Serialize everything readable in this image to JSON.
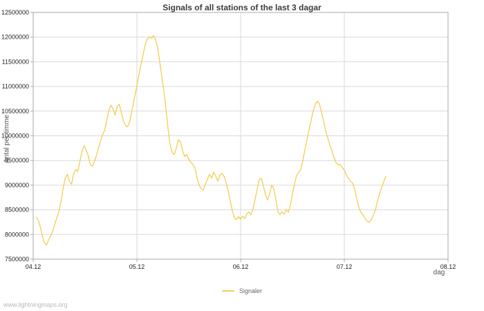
{
  "watermark": "www.lightningmaps.org",
  "legend": {
    "label": "Signaler"
  },
  "colors": {
    "line": "#f0ce54",
    "grid": "#d9d9d9",
    "axis": "#aaaaaa",
    "tick_text": "#222222"
  },
  "chart_data": {
    "type": "line",
    "title": "Signals of all stations of the last 3 dagar",
    "xlabel": "dag",
    "ylabel": "Antal per timme",
    "xlim": [
      4.0,
      8.0
    ],
    "ylim": [
      7500000,
      12500000
    ],
    "grid": true,
    "legend_position": "bottom-center",
    "x_ticks": [
      {
        "v": 4.0,
        "label": "04.12"
      },
      {
        "v": 5.0,
        "label": "05.12"
      },
      {
        "v": 6.0,
        "label": "06.12"
      },
      {
        "v": 7.0,
        "label": "07.12"
      },
      {
        "v": 8.0,
        "label": "08.12"
      }
    ],
    "y_ticks": [
      {
        "v": 7500000,
        "label": "7500000"
      },
      {
        "v": 8000000,
        "label": "8000000"
      },
      {
        "v": 8500000,
        "label": "8500000"
      },
      {
        "v": 9000000,
        "label": "9000000"
      },
      {
        "v": 9500000,
        "label": "9500000"
      },
      {
        "v": 10000000,
        "label": "10000000"
      },
      {
        "v": 10500000,
        "label": "10500000"
      },
      {
        "v": 11000000,
        "label": "11000000"
      },
      {
        "v": 11500000,
        "label": "11500000"
      },
      {
        "v": 12000000,
        "label": "12000000"
      },
      {
        "v": 12500000,
        "label": "12500000"
      }
    ],
    "series": [
      {
        "name": "Signaler",
        "points": [
          [
            4.03,
            8350000
          ],
          [
            4.05,
            8280000
          ],
          [
            4.07,
            8150000
          ],
          [
            4.09,
            7950000
          ],
          [
            4.11,
            7820000
          ],
          [
            4.13,
            7790000
          ],
          [
            4.15,
            7900000
          ],
          [
            4.17,
            7980000
          ],
          [
            4.19,
            8080000
          ],
          [
            4.21,
            8220000
          ],
          [
            4.23,
            8350000
          ],
          [
            4.25,
            8480000
          ],
          [
            4.27,
            8700000
          ],
          [
            4.29,
            8950000
          ],
          [
            4.31,
            9150000
          ],
          [
            4.33,
            9220000
          ],
          [
            4.35,
            9080000
          ],
          [
            4.37,
            9020000
          ],
          [
            4.39,
            9230000
          ],
          [
            4.41,
            9320000
          ],
          [
            4.43,
            9280000
          ],
          [
            4.45,
            9480000
          ],
          [
            4.47,
            9680000
          ],
          [
            4.49,
            9800000
          ],
          [
            4.51,
            9720000
          ],
          [
            4.53,
            9600000
          ],
          [
            4.55,
            9420000
          ],
          [
            4.57,
            9380000
          ],
          [
            4.59,
            9480000
          ],
          [
            4.61,
            9600000
          ],
          [
            4.63,
            9750000
          ],
          [
            4.65,
            9900000
          ],
          [
            4.67,
            10020000
          ],
          [
            4.69,
            10120000
          ],
          [
            4.71,
            10320000
          ],
          [
            4.73,
            10520000
          ],
          [
            4.75,
            10620000
          ],
          [
            4.77,
            10540000
          ],
          [
            4.79,
            10420000
          ],
          [
            4.81,
            10600000
          ],
          [
            4.83,
            10640000
          ],
          [
            4.85,
            10480000
          ],
          [
            4.87,
            10300000
          ],
          [
            4.89,
            10220000
          ],
          [
            4.91,
            10180000
          ],
          [
            4.93,
            10280000
          ],
          [
            4.95,
            10480000
          ],
          [
            4.97,
            10700000
          ],
          [
            5.0,
            11020000
          ],
          [
            5.03,
            11350000
          ],
          [
            5.06,
            11650000
          ],
          [
            5.08,
            11850000
          ],
          [
            5.1,
            11960000
          ],
          [
            5.12,
            12010000
          ],
          [
            5.14,
            11980000
          ],
          [
            5.16,
            12030000
          ],
          [
            5.18,
            11950000
          ],
          [
            5.2,
            11780000
          ],
          [
            5.22,
            11500000
          ],
          [
            5.24,
            11200000
          ],
          [
            5.26,
            10900000
          ],
          [
            5.28,
            10550000
          ],
          [
            5.3,
            10150000
          ],
          [
            5.32,
            9820000
          ],
          [
            5.34,
            9660000
          ],
          [
            5.36,
            9620000
          ],
          [
            5.38,
            9750000
          ],
          [
            5.4,
            9920000
          ],
          [
            5.42,
            9880000
          ],
          [
            5.44,
            9700000
          ],
          [
            5.46,
            9580000
          ],
          [
            5.48,
            9620000
          ],
          [
            5.5,
            9520000
          ],
          [
            5.52,
            9460000
          ],
          [
            5.54,
            9420000
          ],
          [
            5.56,
            9350000
          ],
          [
            5.58,
            9150000
          ],
          [
            5.6,
            9000000
          ],
          [
            5.62,
            8930000
          ],
          [
            5.64,
            8900000
          ],
          [
            5.66,
            9020000
          ],
          [
            5.68,
            9120000
          ],
          [
            5.7,
            9220000
          ],
          [
            5.72,
            9140000
          ],
          [
            5.74,
            9260000
          ],
          [
            5.76,
            9180000
          ],
          [
            5.78,
            9080000
          ],
          [
            5.8,
            9200000
          ],
          [
            5.82,
            9240000
          ],
          [
            5.84,
            9180000
          ],
          [
            5.86,
            9060000
          ],
          [
            5.88,
            8880000
          ],
          [
            5.9,
            8680000
          ],
          [
            5.92,
            8480000
          ],
          [
            5.94,
            8340000
          ],
          [
            5.96,
            8300000
          ],
          [
            5.98,
            8360000
          ],
          [
            6.0,
            8310000
          ],
          [
            6.02,
            8370000
          ],
          [
            6.04,
            8320000
          ],
          [
            6.06,
            8420000
          ],
          [
            6.08,
            8460000
          ],
          [
            6.1,
            8400000
          ],
          [
            6.12,
            8520000
          ],
          [
            6.14,
            8720000
          ],
          [
            6.16,
            8920000
          ],
          [
            6.18,
            9120000
          ],
          [
            6.2,
            9140000
          ],
          [
            6.22,
            8980000
          ],
          [
            6.24,
            8800000
          ],
          [
            6.26,
            8700000
          ],
          [
            6.28,
            8820000
          ],
          [
            6.3,
            9000000
          ],
          [
            6.32,
            8930000
          ],
          [
            6.34,
            8700000
          ],
          [
            6.36,
            8460000
          ],
          [
            6.38,
            8400000
          ],
          [
            6.4,
            8460000
          ],
          [
            6.42,
            8410000
          ],
          [
            6.44,
            8510000
          ],
          [
            6.46,
            8450000
          ],
          [
            6.48,
            8600000
          ],
          [
            6.5,
            8820000
          ],
          [
            6.52,
            9030000
          ],
          [
            6.54,
            9200000
          ],
          [
            6.56,
            9260000
          ],
          [
            6.58,
            9320000
          ],
          [
            6.6,
            9500000
          ],
          [
            6.62,
            9720000
          ],
          [
            6.64,
            9920000
          ],
          [
            6.66,
            10120000
          ],
          [
            6.68,
            10320000
          ],
          [
            6.7,
            10500000
          ],
          [
            6.72,
            10640000
          ],
          [
            6.74,
            10700000
          ],
          [
            6.76,
            10640000
          ],
          [
            6.78,
            10480000
          ],
          [
            6.8,
            10300000
          ],
          [
            6.82,
            10100000
          ],
          [
            6.84,
            9960000
          ],
          [
            6.86,
            9820000
          ],
          [
            6.88,
            9700000
          ],
          [
            6.9,
            9560000
          ],
          [
            6.92,
            9460000
          ],
          [
            6.94,
            9410000
          ],
          [
            6.96,
            9420000
          ],
          [
            6.98,
            9360000
          ],
          [
            7.0,
            9300000
          ],
          [
            7.02,
            9210000
          ],
          [
            7.04,
            9130000
          ],
          [
            7.06,
            9080000
          ],
          [
            7.08,
            9040000
          ],
          [
            7.1,
            8920000
          ],
          [
            7.12,
            8720000
          ],
          [
            7.14,
            8550000
          ],
          [
            7.16,
            8450000
          ],
          [
            7.18,
            8400000
          ],
          [
            7.2,
            8320000
          ],
          [
            7.22,
            8270000
          ],
          [
            7.24,
            8250000
          ],
          [
            7.26,
            8300000
          ],
          [
            7.28,
            8390000
          ],
          [
            7.3,
            8500000
          ],
          [
            7.32,
            8680000
          ],
          [
            7.34,
            8830000
          ],
          [
            7.36,
            8960000
          ],
          [
            7.38,
            9070000
          ],
          [
            7.4,
            9180000
          ]
        ]
      }
    ]
  }
}
